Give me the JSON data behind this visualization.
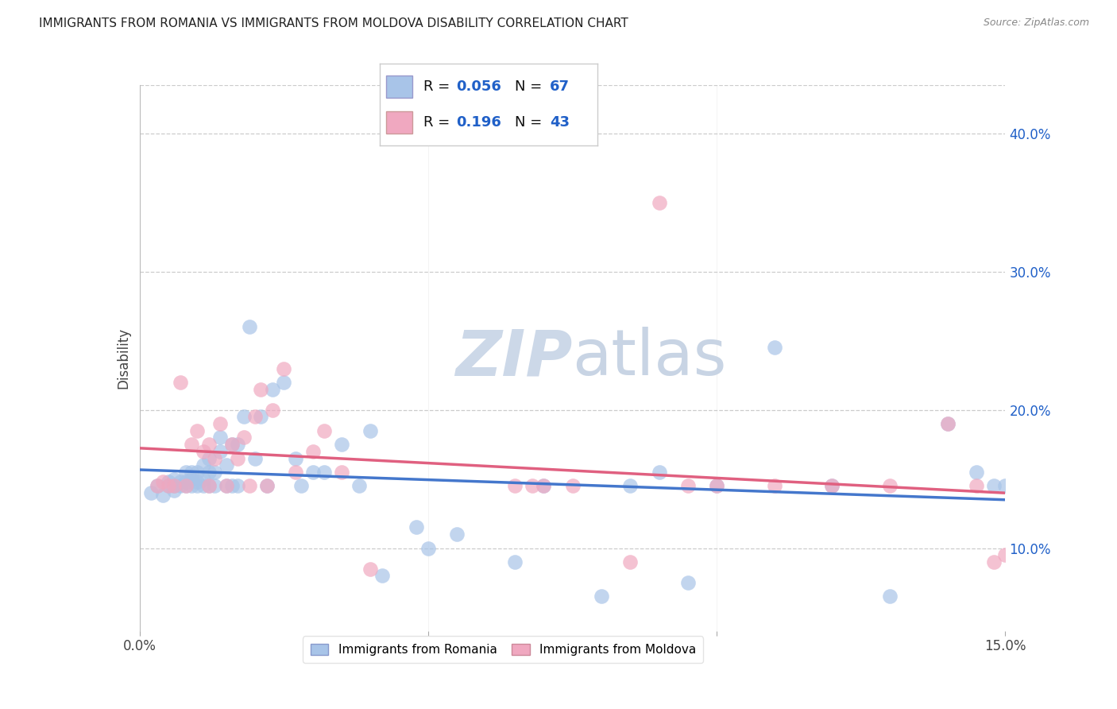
{
  "title": "IMMIGRANTS FROM ROMANIA VS IMMIGRANTS FROM MOLDOVA DISABILITY CORRELATION CHART",
  "source": "Source: ZipAtlas.com",
  "ylabel": "Disability",
  "ytick_labels": [
    "10.0%",
    "20.0%",
    "30.0%",
    "40.0%"
  ],
  "ytick_values": [
    0.1,
    0.2,
    0.3,
    0.4
  ],
  "xlim": [
    0.0,
    0.15
  ],
  "ylim": [
    0.04,
    0.435
  ],
  "romania_color": "#a8c4e8",
  "moldova_color": "#f0a8c0",
  "legend_R_color": "#2060c8",
  "legend_N_color": "#2060c8",
  "background_color": "#ffffff",
  "grid_color": "#cccccc",
  "watermark_text": "ZIPatlas",
  "watermark_color": "#cdd8e8",
  "romania_scatter_x": [
    0.002,
    0.003,
    0.004,
    0.005,
    0.005,
    0.006,
    0.006,
    0.006,
    0.007,
    0.007,
    0.008,
    0.008,
    0.008,
    0.009,
    0.009,
    0.009,
    0.01,
    0.01,
    0.01,
    0.011,
    0.011,
    0.011,
    0.012,
    0.012,
    0.012,
    0.013,
    0.013,
    0.014,
    0.014,
    0.015,
    0.015,
    0.016,
    0.016,
    0.017,
    0.017,
    0.018,
    0.019,
    0.02,
    0.021,
    0.022,
    0.023,
    0.025,
    0.027,
    0.028,
    0.03,
    0.032,
    0.035,
    0.038,
    0.04,
    0.042,
    0.048,
    0.05,
    0.055,
    0.065,
    0.07,
    0.08,
    0.085,
    0.09,
    0.095,
    0.1,
    0.11,
    0.12,
    0.13,
    0.14,
    0.145,
    0.148,
    0.15
  ],
  "romania_scatter_y": [
    0.14,
    0.145,
    0.138,
    0.145,
    0.148,
    0.145,
    0.142,
    0.15,
    0.145,
    0.148,
    0.145,
    0.148,
    0.155,
    0.145,
    0.15,
    0.155,
    0.145,
    0.148,
    0.155,
    0.145,
    0.15,
    0.16,
    0.145,
    0.155,
    0.165,
    0.155,
    0.145,
    0.17,
    0.18,
    0.145,
    0.16,
    0.145,
    0.175,
    0.175,
    0.145,
    0.195,
    0.26,
    0.165,
    0.195,
    0.145,
    0.215,
    0.22,
    0.165,
    0.145,
    0.155,
    0.155,
    0.175,
    0.145,
    0.185,
    0.08,
    0.115,
    0.1,
    0.11,
    0.09,
    0.145,
    0.065,
    0.145,
    0.155,
    0.075,
    0.145,
    0.245,
    0.145,
    0.065,
    0.19,
    0.155,
    0.145,
    0.145
  ],
  "moldova_scatter_x": [
    0.003,
    0.004,
    0.005,
    0.006,
    0.007,
    0.008,
    0.009,
    0.01,
    0.011,
    0.012,
    0.012,
    0.013,
    0.014,
    0.015,
    0.016,
    0.017,
    0.018,
    0.019,
    0.02,
    0.021,
    0.022,
    0.023,
    0.025,
    0.027,
    0.03,
    0.032,
    0.035,
    0.04,
    0.065,
    0.07,
    0.075,
    0.085,
    0.09,
    0.095,
    0.1,
    0.11,
    0.12,
    0.13,
    0.14,
    0.145,
    0.148,
    0.15,
    0.068
  ],
  "moldova_scatter_y": [
    0.145,
    0.148,
    0.145,
    0.145,
    0.22,
    0.145,
    0.175,
    0.185,
    0.17,
    0.175,
    0.145,
    0.165,
    0.19,
    0.145,
    0.175,
    0.165,
    0.18,
    0.145,
    0.195,
    0.215,
    0.145,
    0.2,
    0.23,
    0.155,
    0.17,
    0.185,
    0.155,
    0.085,
    0.145,
    0.145,
    0.145,
    0.09,
    0.35,
    0.145,
    0.145,
    0.145,
    0.145,
    0.145,
    0.19,
    0.145,
    0.09,
    0.095,
    0.145
  ]
}
